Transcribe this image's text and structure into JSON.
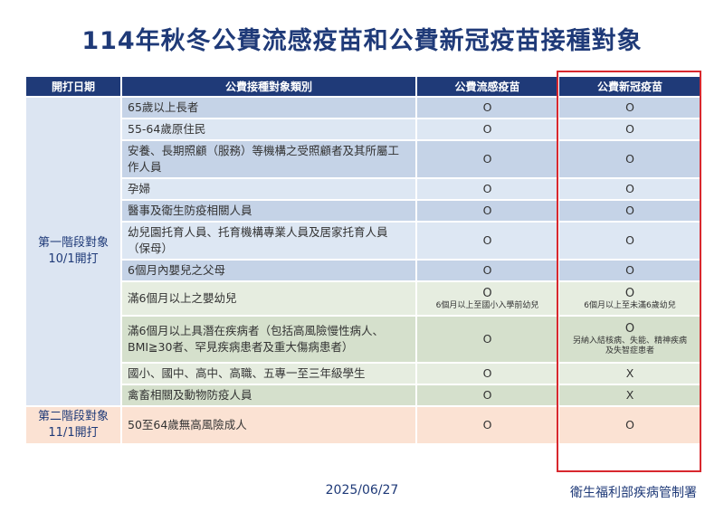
{
  "title": "114年秋冬公費流感疫苗和公費新冠疫苗接種對象",
  "headers": {
    "date": "開打日期",
    "category": "公費接種對象類別",
    "flu": "公費流感疫苗",
    "covid": "公費新冠疫苗"
  },
  "phases": {
    "p1": {
      "label": "第一階段對象",
      "date": "10/1開打"
    },
    "p2": {
      "label": "第二階段對象",
      "date": "11/1開打"
    }
  },
  "rows": [
    {
      "category": "65歲以上長者",
      "flu": "O",
      "covid": "O"
    },
    {
      "category": "55-64歲原住民",
      "flu": "O",
      "covid": "O"
    },
    {
      "category": "安養、長期照顧（服務）等機構之受照顧者及其所屬工作人員",
      "flu": "O",
      "covid": "O"
    },
    {
      "category": "孕婦",
      "flu": "O",
      "covid": "O"
    },
    {
      "category": "醫事及衛生防疫相關人員",
      "flu": "O",
      "covid": "O"
    },
    {
      "category": "幼兒園托育人員、托育機構專業人員及居家托育人員（保母）",
      "flu": "O",
      "covid": "O"
    },
    {
      "category": "6個月內嬰兒之父母",
      "flu": "O",
      "covid": "O"
    },
    {
      "category": "滿6個月以上之嬰幼兒",
      "flu": "O",
      "flu_note": "6個月以上至國小入學前幼兒",
      "covid": "O",
      "covid_note": "6個月以上至未滿6歲幼兒"
    },
    {
      "category": "滿6個月以上具潛在疾病者（包括高風險慢性病人、BMI≧30者、罕見疾病患者及重大傷病患者）",
      "flu": "O",
      "covid": "O",
      "covid_note": "另納入結核病、失能、精神疾病及失智症患者"
    },
    {
      "category": "國小、國中、高中、高職、五專一至三年級學生",
      "flu": "O",
      "covid": "X"
    },
    {
      "category": "禽畜相關及動物防疫人員",
      "flu": "O",
      "covid": "X"
    },
    {
      "category": "50至64歲無高風險成人",
      "flu": "O",
      "covid": "O"
    }
  ],
  "footer": {
    "date": "2025/06/27",
    "org": "衛生福利部疾病管制署"
  },
  "colors": {
    "header": "#1f3a78",
    "highlight_border": "#d8282e",
    "blue_row": "#c5d3e7",
    "green_row": "#d5e0cc",
    "orange_row": "#fbe2d3"
  }
}
